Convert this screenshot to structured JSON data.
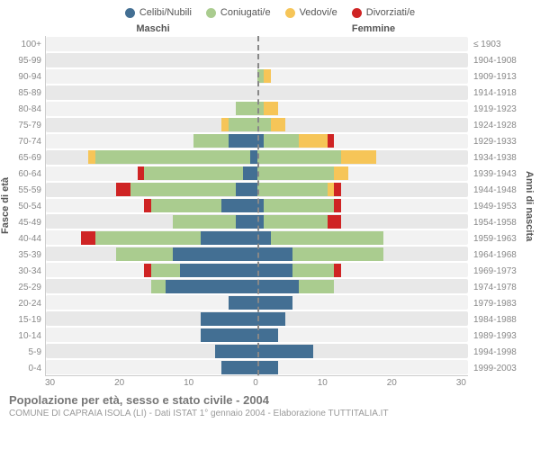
{
  "legend": [
    {
      "label": "Celibi/Nubili",
      "color": "#436f93"
    },
    {
      "label": "Coniugati/e",
      "color": "#aacc8f"
    },
    {
      "label": "Vedovi/e",
      "color": "#f6c558"
    },
    {
      "label": "Divorziati/e",
      "color": "#cf2424"
    }
  ],
  "headers": {
    "male": "Maschi",
    "female": "Femmine"
  },
  "y_left_title": "Fasce di età",
  "y_right_title": "Anni di nascita",
  "x": {
    "max": 30,
    "ticks": [
      "30",
      "20",
      "10",
      "0",
      "10",
      "20",
      "30"
    ]
  },
  "row_bg_colors": [
    "#f2f2f2",
    "#e8e8e8"
  ],
  "grid_color": "#ffffff",
  "center_line_color": "#888888",
  "colors": {
    "celibi": "#436f93",
    "coniugati": "#aacc8f",
    "vedovi": "#f6c558",
    "divorziati": "#cf2424"
  },
  "rows": [
    {
      "age": "100+",
      "birth": "≤ 1903",
      "male": {
        "c": 0,
        "m": 0,
        "w": 0,
        "d": 0
      },
      "female": {
        "c": 0,
        "m": 0,
        "w": 0,
        "d": 0
      }
    },
    {
      "age": "95-99",
      "birth": "1904-1908",
      "male": {
        "c": 0,
        "m": 0,
        "w": 0,
        "d": 0
      },
      "female": {
        "c": 0,
        "m": 0,
        "w": 0,
        "d": 0
      }
    },
    {
      "age": "90-94",
      "birth": "1909-1913",
      "male": {
        "c": 0,
        "m": 0,
        "w": 0,
        "d": 0
      },
      "female": {
        "c": 0,
        "m": 1,
        "w": 1,
        "d": 0
      }
    },
    {
      "age": "85-89",
      "birth": "1914-1918",
      "male": {
        "c": 0,
        "m": 0,
        "w": 0,
        "d": 0
      },
      "female": {
        "c": 0,
        "m": 0,
        "w": 0,
        "d": 0
      }
    },
    {
      "age": "80-84",
      "birth": "1919-1923",
      "male": {
        "c": 0,
        "m": 3,
        "w": 0,
        "d": 0
      },
      "female": {
        "c": 0,
        "m": 1,
        "w": 2,
        "d": 0
      }
    },
    {
      "age": "75-79",
      "birth": "1924-1928",
      "male": {
        "c": 0,
        "m": 4,
        "w": 1,
        "d": 0
      },
      "female": {
        "c": 0,
        "m": 2,
        "w": 2,
        "d": 0
      }
    },
    {
      "age": "70-74",
      "birth": "1929-1933",
      "male": {
        "c": 4,
        "m": 5,
        "w": 0,
        "d": 0
      },
      "female": {
        "c": 1,
        "m": 5,
        "w": 4,
        "d": 1
      }
    },
    {
      "age": "65-69",
      "birth": "1934-1938",
      "male": {
        "c": 1,
        "m": 22,
        "w": 1,
        "d": 0
      },
      "female": {
        "c": 0,
        "m": 12,
        "w": 5,
        "d": 0
      }
    },
    {
      "age": "60-64",
      "birth": "1939-1943",
      "male": {
        "c": 2,
        "m": 14,
        "w": 0,
        "d": 1
      },
      "female": {
        "c": 0,
        "m": 11,
        "w": 2,
        "d": 0
      }
    },
    {
      "age": "55-59",
      "birth": "1944-1948",
      "male": {
        "c": 3,
        "m": 15,
        "w": 0,
        "d": 2
      },
      "female": {
        "c": 0,
        "m": 10,
        "w": 1,
        "d": 1
      }
    },
    {
      "age": "50-54",
      "birth": "1949-1953",
      "male": {
        "c": 5,
        "m": 10,
        "w": 0,
        "d": 1
      },
      "female": {
        "c": 1,
        "m": 10,
        "w": 0,
        "d": 1
      }
    },
    {
      "age": "45-49",
      "birth": "1954-1958",
      "male": {
        "c": 3,
        "m": 9,
        "w": 0,
        "d": 0
      },
      "female": {
        "c": 1,
        "m": 9,
        "w": 0,
        "d": 2
      }
    },
    {
      "age": "40-44",
      "birth": "1959-1963",
      "male": {
        "c": 8,
        "m": 15,
        "w": 0,
        "d": 2
      },
      "female": {
        "c": 2,
        "m": 16,
        "w": 0,
        "d": 0
      }
    },
    {
      "age": "35-39",
      "birth": "1964-1968",
      "male": {
        "c": 12,
        "m": 8,
        "w": 0,
        "d": 0
      },
      "female": {
        "c": 5,
        "m": 13,
        "w": 0,
        "d": 0
      }
    },
    {
      "age": "30-34",
      "birth": "1969-1973",
      "male": {
        "c": 11,
        "m": 4,
        "w": 0,
        "d": 1
      },
      "female": {
        "c": 5,
        "m": 6,
        "w": 0,
        "d": 1
      }
    },
    {
      "age": "25-29",
      "birth": "1974-1978",
      "male": {
        "c": 13,
        "m": 2,
        "w": 0,
        "d": 0
      },
      "female": {
        "c": 6,
        "m": 5,
        "w": 0,
        "d": 0
      }
    },
    {
      "age": "20-24",
      "birth": "1979-1983",
      "male": {
        "c": 4,
        "m": 0,
        "w": 0,
        "d": 0
      },
      "female": {
        "c": 5,
        "m": 0,
        "w": 0,
        "d": 0
      }
    },
    {
      "age": "15-19",
      "birth": "1984-1988",
      "male": {
        "c": 8,
        "m": 0,
        "w": 0,
        "d": 0
      },
      "female": {
        "c": 4,
        "m": 0,
        "w": 0,
        "d": 0
      }
    },
    {
      "age": "10-14",
      "birth": "1989-1993",
      "male": {
        "c": 8,
        "m": 0,
        "w": 0,
        "d": 0
      },
      "female": {
        "c": 3,
        "m": 0,
        "w": 0,
        "d": 0
      }
    },
    {
      "age": "5-9",
      "birth": "1994-1998",
      "male": {
        "c": 6,
        "m": 0,
        "w": 0,
        "d": 0
      },
      "female": {
        "c": 8,
        "m": 0,
        "w": 0,
        "d": 0
      }
    },
    {
      "age": "0-4",
      "birth": "1999-2003",
      "male": {
        "c": 5,
        "m": 0,
        "w": 0,
        "d": 0
      },
      "female": {
        "c": 3,
        "m": 0,
        "w": 0,
        "d": 0
      }
    }
  ],
  "caption": {
    "title": "Popolazione per età, sesso e stato civile - 2004",
    "sub": "COMUNE DI CAPRAIA ISOLA (LI) - Dati ISTAT 1° gennaio 2004 - Elaborazione TUTTITALIA.IT"
  }
}
